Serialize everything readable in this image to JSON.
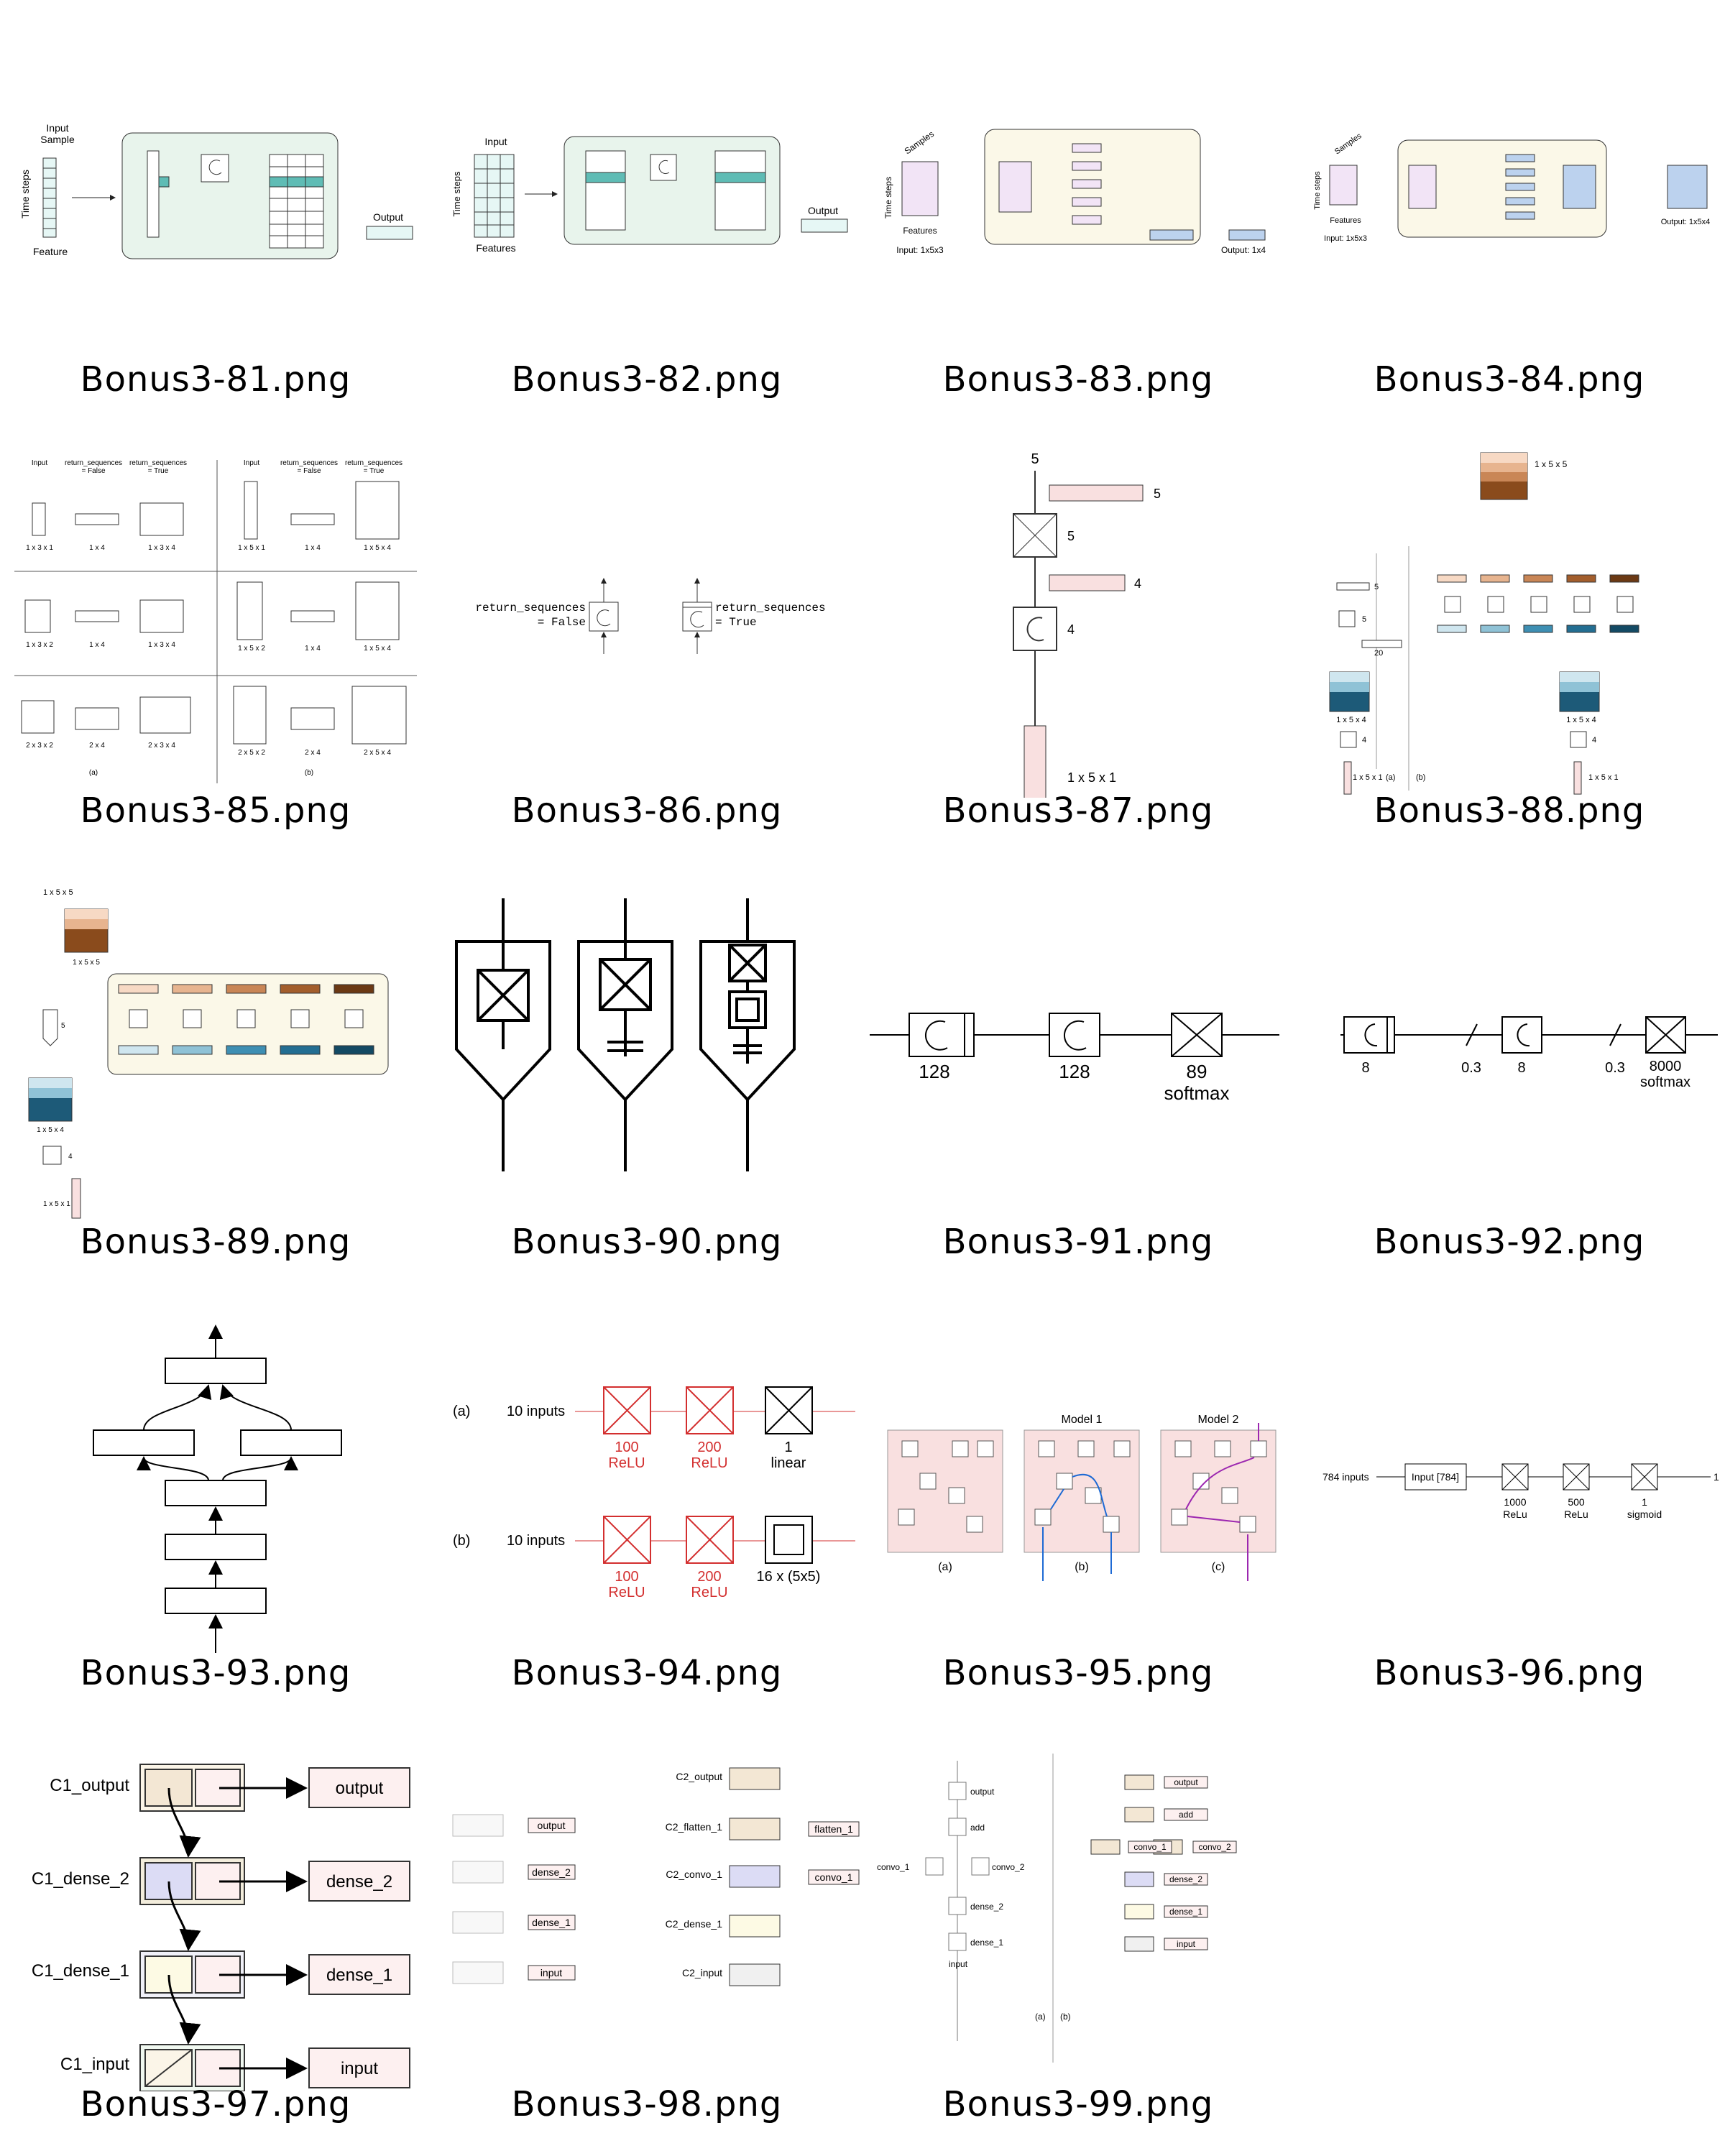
{
  "captions": [
    "Bonus3-81.png",
    "Bonus3-82.png",
    "Bonus3-83.png",
    "Bonus3-84.png",
    "Bonus3-85.png",
    "Bonus3-86.png",
    "Bonus3-87.png",
    "Bonus3-88.png",
    "Bonus3-89.png",
    "Bonus3-90.png",
    "Bonus3-91.png",
    "Bonus3-92.png",
    "Bonus3-93.png",
    "Bonus3-94.png",
    "Bonus3-95.png",
    "Bonus3-96.png",
    "Bonus3-97.png",
    "Bonus3-98.png",
    "Bonus3-99.png"
  ],
  "d81": {
    "input": "Input",
    "sample": "Sample",
    "time": "Time steps",
    "feature": "Feature",
    "output": "Output"
  },
  "d82": {
    "input": "Input",
    "time": "Time steps",
    "features": "Features",
    "output": "Output"
  },
  "d83": {
    "samples": "Samples",
    "time": "Time steps",
    "features": "Features",
    "input_shape": "Input: 1x5x3",
    "output_shape": "Output: 1x4"
  },
  "d84": {
    "samples": "Samples",
    "time": "Time steps",
    "features": "Features",
    "input_shape": "Input: 1x5x3",
    "output_shape": "Output: 1x5x4"
  },
  "d85": {
    "h_input": "Input",
    "h_false": "return_sequences",
    "h_false2": "= False",
    "h_true": "return_sequences",
    "h_true2": "= True",
    "a1": "1 x 3 x 1",
    "a2": "1 x 4",
    "a3": "1 x 3 x 4",
    "b1": "1 x 5 x 1",
    "b2": "1 x 4",
    "b3": "1 x 5 x 4",
    "a4": "1 x 3 x 2",
    "a5": "1 x 4",
    "a6": "1 x 3 x 4",
    "b4": "1 x 5 x 2",
    "b5": "1 x 4",
    "b6": "1 x 5 x 4",
    "a7": "2 x 3 x 2",
    "a8": "2 x 4",
    "a9": "2 x 3 x 4",
    "b7": "2 x 5 x 2",
    "b8": "2 x 4",
    "b9": "2 x 5 x 4",
    "pa": "(a)",
    "pb": "(b)"
  },
  "d86": {
    "left1": "return_sequences",
    "left2": "= False",
    "right1": "return_sequences",
    "right2": "= True"
  },
  "d87": {
    "top": "5",
    "bar5": "5",
    "dense": "5",
    "bar4": "4",
    "rnn": "4",
    "input": "1 x 5 x 1"
  },
  "d88": {
    "top": "1 x 5 x 5",
    "n5": "5",
    "n20": "20",
    "stack": "1 x 5 x 4",
    "rnn": "4",
    "input": "1 x 5 x 1",
    "pa": "(a)",
    "pb": "(b)"
  },
  "d89": {
    "top": "1 x 5 x 5",
    "stack1": "1 x 5 x 5",
    "n5": "5",
    "stack": "1 x 5 x 4",
    "rnn": "4",
    "input": "1 x 5 x 1"
  },
  "d91": {
    "l1": "128",
    "l2": "128",
    "l3": "89",
    "l4": "softmax"
  },
  "d92": {
    "l1": "8",
    "l2": "0.3",
    "l3": "8",
    "l4": "0.3",
    "l5": "8000",
    "l6": "softmax"
  },
  "d94": {
    "a": "(a)",
    "b": "(b)",
    "inputs": "10 inputs",
    "n100": "100",
    "n200": "200",
    "relu": "ReLU",
    "n1": "1",
    "linear": "linear",
    "conv": "16 x (5x5)"
  },
  "d95": {
    "m1": "Model 1",
    "m2": "Model 2",
    "pa": "(a)",
    "pb": "(b)",
    "pc": "(c)"
  },
  "d96": {
    "inputs": "784 inputs",
    "input": "Input [784]",
    "n1000": "1000",
    "relu": "ReLu",
    "n500": "500",
    "n1": "1",
    "sigmoid": "sigmoid",
    "out": "1"
  },
  "d97": {
    "l1": "C1_output",
    "l2": "C1_dense_2",
    "l3": "C1_dense_1",
    "l4": "C1_input",
    "r1": "output",
    "r2": "dense_2",
    "r3": "dense_1",
    "r4": "input"
  },
  "d98": {
    "output": "output",
    "dense_2": "dense_2",
    "dense_1": "dense_1",
    "input": "input",
    "c2_output": "C2_output",
    "c2_flatten": "C2_flatten_1",
    "c2_convo": "C2_convo_1",
    "c2_dense": "C2_dense_1",
    "c2_input": "C2_input",
    "flatten": "flatten_1",
    "convo": "convo_1"
  },
  "d99": {
    "output": "output",
    "add": "add",
    "convo_1": "convo_1",
    "convo_2": "convo_2",
    "dense_2": "dense_2",
    "dense_1": "dense_1",
    "input": "input",
    "pa": "(a)",
    "pb": "(b)"
  },
  "colors": {
    "teal_fill": "#e6f7f5",
    "teal_dark": "#5fbcb5",
    "green_panel": "#e8f4ec",
    "purple": "#f2e4f6",
    "blue": "#bcd2ee",
    "cream": "#fbf8e8",
    "pink": "#f9e0e0",
    "red": "#d32f2f",
    "brown": "#8a4b1c",
    "navy": "#1d5a78"
  }
}
